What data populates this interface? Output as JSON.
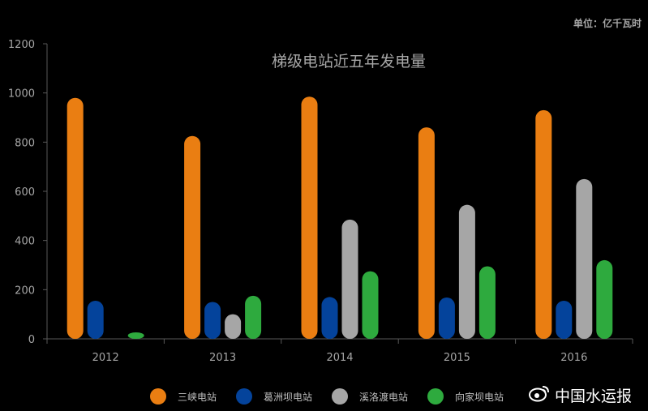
{
  "unit_label": "单位：亿千瓦时",
  "watermark": {
    "text": "中国水运报",
    "icon": "weibo-icon"
  },
  "colors": {
    "background": "#000000",
    "axis": "#595959",
    "tick_text": "#a6a6a6",
    "title_text": "#a6a6a6"
  },
  "chart_data": {
    "type": "bar",
    "title": "梯级电站近五年发电量",
    "xlabel": "",
    "ylabel": "",
    "ylim": [
      0,
      1200
    ],
    "yticks": [
      0,
      200,
      400,
      600,
      800,
      1000,
      1200
    ],
    "grid": false,
    "legend_position": "bottom",
    "categories": [
      "2012",
      "2013",
      "2014",
      "2015",
      "2016"
    ],
    "series": [
      {
        "name": "三峡电站",
        "color": "#ea7e12",
        "values": [
          980,
          825,
          985,
          860,
          930
        ]
      },
      {
        "name": "葛洲坝电站",
        "color": "#04439b",
        "values": [
          155,
          150,
          170,
          168,
          155
        ]
      },
      {
        "name": "溪洛渡电站",
        "color": "#a6a6a6",
        "values": [
          null,
          100,
          485,
          545,
          650
        ]
      },
      {
        "name": "向家坝电站",
        "color": "#2eaa3e",
        "values": [
          5,
          175,
          275,
          295,
          320
        ]
      }
    ]
  }
}
